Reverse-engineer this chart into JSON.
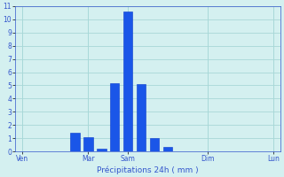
{
  "title": "Précipitations 24h ( mm )",
  "bar_color": "#1a56e8",
  "bar_edge_color": "#0a3acc",
  "background_color": "#d4f0f0",
  "grid_color": "#a8d8d8",
  "tick_label_color": "#3355cc",
  "ylim": [
    0,
    11
  ],
  "yticks": [
    0,
    1,
    2,
    3,
    4,
    5,
    6,
    7,
    8,
    9,
    10,
    11
  ],
  "day_labels": [
    "Ven",
    "Mar",
    "Sam",
    "Dim",
    "Lun"
  ],
  "num_slots": 20,
  "day_slot_positions": [
    0,
    5,
    8,
    14,
    19
  ],
  "bar_slots": [
    4,
    5,
    6,
    7,
    8,
    9,
    10,
    11
  ],
  "bar_values": [
    1.4,
    1.1,
    0.2,
    5.2,
    10.6,
    5.1,
    1.0,
    0.35
  ],
  "bar_width": 0.7
}
